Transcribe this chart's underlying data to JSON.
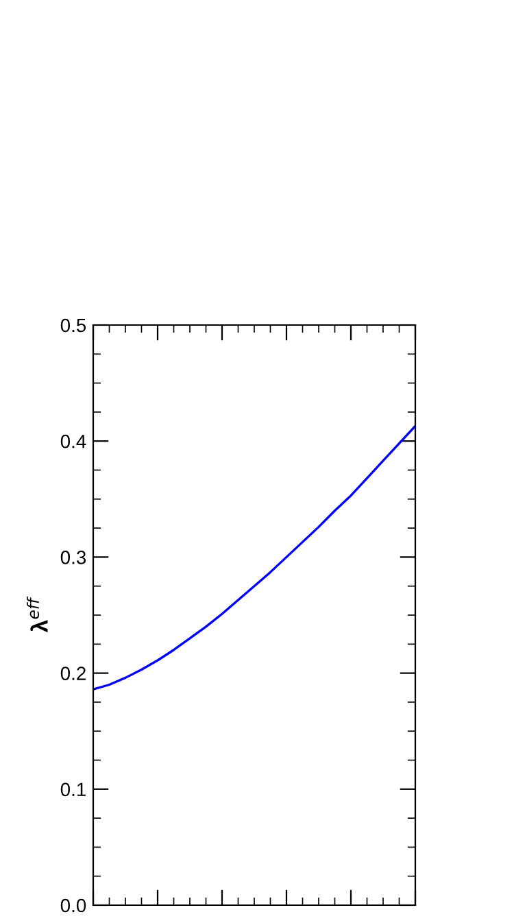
{
  "chart_data": {
    "type": "line",
    "ylabel": "λ$^{eff}$",
    "categories": [
      null,
      null,
      null,
      null,
      null,
      null,
      null,
      null,
      null,
      null,
      null,
      null,
      null,
      null,
      null,
      null,
      null,
      null,
      null,
      null,
      null
    ],
    "series": [
      {
        "color": "#0000ff",
        "values": [
          0.186,
          0.19,
          0.196,
          0.203,
          0.211,
          0.22,
          0.23,
          0.24,
          0.251,
          0.263,
          0.275,
          0.287,
          0.3,
          0.313,
          0.326,
          0.34,
          0.353,
          0.368,
          0.383,
          0.398,
          0.413
        ]
      }
    ],
    "ylim": [
      0,
      0.5
    ],
    "yticks": [
      {
        "value": 0,
        "label": "0.0"
      },
      0.1,
      0.2,
      0.3,
      0.4,
      0.5
    ],
    "tick_labels": "y",
    "grid": false,
    "legend": false,
    "marker": "none",
    "line_style": "solid"
  }
}
